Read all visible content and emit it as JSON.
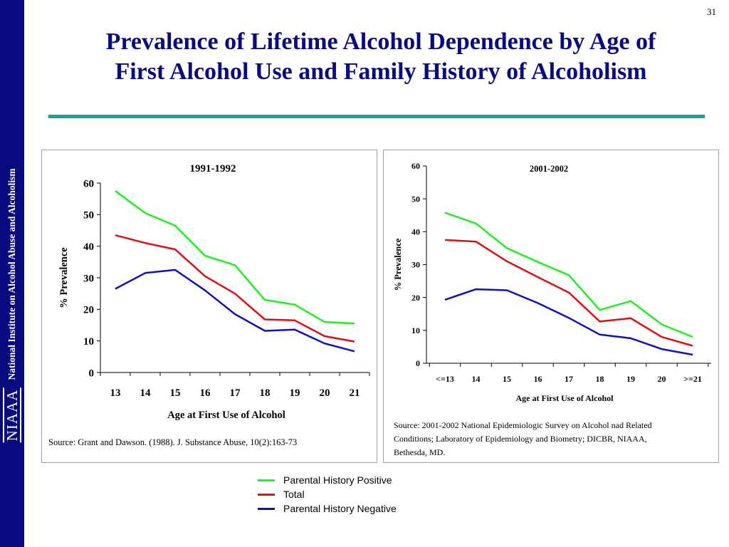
{
  "slide": {
    "page_number": "31",
    "title_line1": "Prevalence of Lifetime Alcohol Dependence by Age of",
    "title_line2": "First Alcohol Use and Family History of Alcoholism",
    "sidebar_text": "National Institute on Alcohol Abuse and Alcoholism",
    "logo_text": "NIAAA",
    "colors": {
      "sidebar": "#0a0a80",
      "title": "#0a0a80",
      "rule": "#15a39a"
    }
  },
  "legend": [
    {
      "label": "Parental History Positive",
      "color": "#22ee22"
    },
    {
      "label": "Total",
      "color": "#dd1111"
    },
    {
      "label": "Parental History Negative",
      "color": "#1111bb"
    }
  ],
  "chart_data": [
    {
      "type": "line",
      "title": "1991-1992",
      "xlabel": "Age at First Use of Alcohol",
      "ylabel": "% Prevalence",
      "categories": [
        "13",
        "14",
        "15",
        "16",
        "17",
        "18",
        "19",
        "20",
        "21"
      ],
      "ylim": [
        0,
        60
      ],
      "yticks": [
        "0",
        "10",
        "20",
        "30",
        "40",
        "50",
        "60"
      ],
      "series": [
        {
          "name": "Parental History Positive",
          "color": "#22ee22",
          "values": [
            57.5,
            50.5,
            46.5,
            37,
            34,
            23,
            21.5,
            16,
            15.5
          ]
        },
        {
          "name": "Total",
          "color": "#dd1111",
          "values": [
            43.5,
            41,
            39,
            30.5,
            25,
            16.8,
            16.5,
            11.5,
            9.8
          ]
        },
        {
          "name": "Parental History Negative",
          "color": "#1111bb",
          "values": [
            26.5,
            31.5,
            32.5,
            26,
            18.5,
            13.2,
            13.6,
            9.2,
            6.7
          ]
        }
      ],
      "source": "Source: Grant and Dawson. (1988).  J. Substance Abuse, 10(2):163-73"
    },
    {
      "type": "line",
      "title": "2001-2002",
      "xlabel": "Age at First Use of Alcohol",
      "ylabel": "% Prevalence",
      "categories": [
        "<=13",
        "14",
        "15",
        "16",
        "17",
        "18",
        "19",
        "20",
        ">=21"
      ],
      "ylim": [
        0,
        60
      ],
      "yticks": [
        "0",
        "10",
        "20",
        "30",
        "40",
        "50",
        "60"
      ],
      "series": [
        {
          "name": "Parental History Positive",
          "color": "#22ee22",
          "values": [
            45.8,
            42.5,
            35,
            30.8,
            26.8,
            16.2,
            18.9,
            11.8,
            8
          ]
        },
        {
          "name": "Total",
          "color": "#dd1111",
          "values": [
            37.5,
            37,
            31,
            26.2,
            21.5,
            12.7,
            13.7,
            8,
            5.3
          ]
        },
        {
          "name": "Parental History Negative",
          "color": "#1111bb",
          "values": [
            19.3,
            22.5,
            22.2,
            18.3,
            13.8,
            8.7,
            7.6,
            4.3,
            2.6
          ]
        }
      ],
      "source_line1": "Source:  2001-2002 National Epidemiologic Survey on Alcohol nad Related",
      "source_line2": "Conditions; Laboratory of Epidemiology and Biometry; DICBR, NIAAA,",
      "source_line3": "Bethesda, MD."
    }
  ]
}
